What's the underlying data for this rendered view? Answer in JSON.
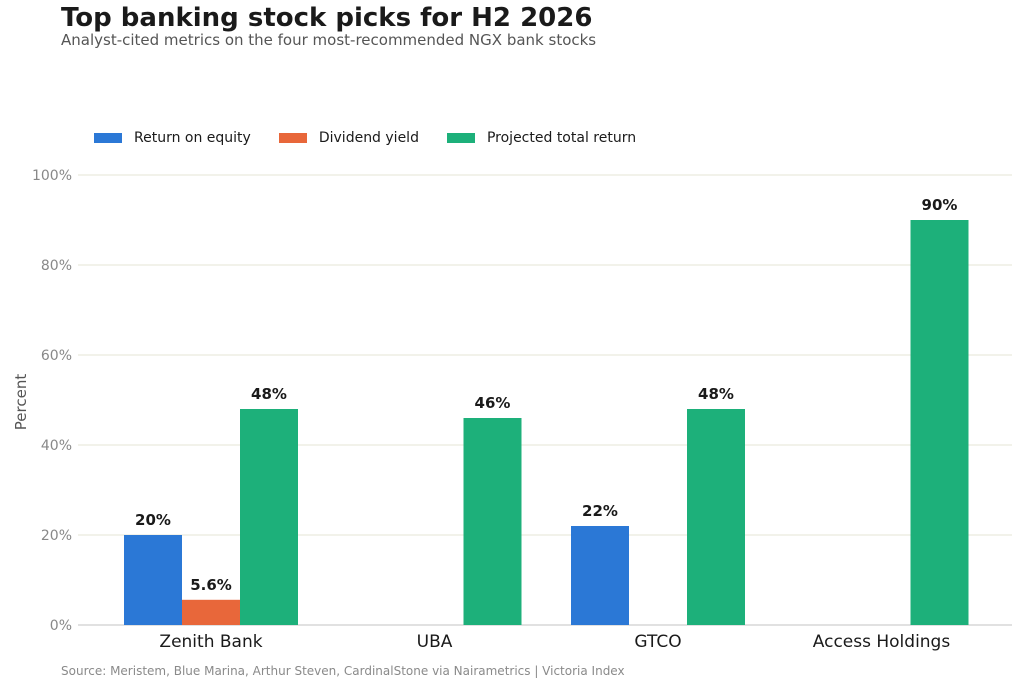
{
  "chart_data": {
    "type": "bar",
    "title": "Top banking stock picks for H2 2026",
    "subtitle": "Analyst-cited metrics on the four most-recommended NGX bank stocks",
    "ylabel": "Percent",
    "xlabel": "",
    "ylim": [
      0,
      100
    ],
    "yticks": [
      0,
      20,
      40,
      60,
      80,
      100
    ],
    "ytick_labels": [
      "0%",
      "20%",
      "40%",
      "60%",
      "80%",
      "100%"
    ],
    "grid": true,
    "legend_position": "top-left",
    "categories": [
      "Zenith Bank",
      "UBA",
      "GTCO",
      "Access Holdings"
    ],
    "series": [
      {
        "name": "Return on equity",
        "color": "#2b78d6",
        "values": [
          20,
          null,
          22,
          null
        ],
        "labels": [
          "20%",
          "",
          "22%",
          ""
        ]
      },
      {
        "name": "Dividend yield",
        "color": "#e8673a",
        "values": [
          5.6,
          null,
          null,
          null
        ],
        "labels": [
          "5.6%",
          "",
          "",
          ""
        ]
      },
      {
        "name": "Projected total return",
        "color": "#1db07a",
        "values": [
          48,
          46,
          48,
          90
        ],
        "labels": [
          "48%",
          "46%",
          "48%",
          "90%"
        ]
      }
    ],
    "source": "Source: Meristem, Blue Marina, Arthur Steven, CardinalStone via Nairametrics  |  Victoria Index"
  }
}
